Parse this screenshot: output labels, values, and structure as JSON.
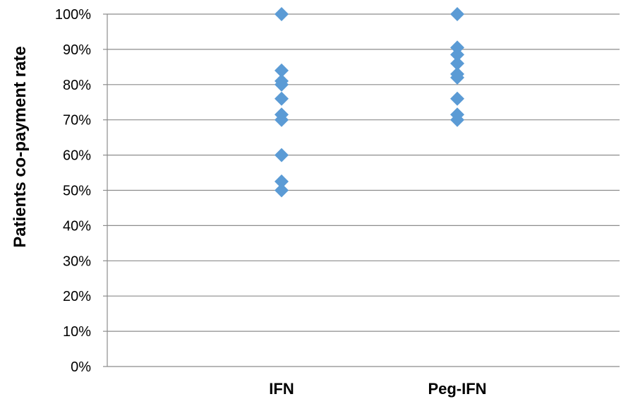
{
  "chart_data": {
    "type": "scatter",
    "title": "",
    "xlabel": "",
    "ylabel": "Patients co-payment rate",
    "categories": [
      "IFN",
      "Peg-IFN"
    ],
    "y_ticks": [
      "0%",
      "10%",
      "20%",
      "30%",
      "40%",
      "50%",
      "60%",
      "70%",
      "80%",
      "90%",
      "100%"
    ],
    "ylim": [
      0,
      100
    ],
    "y_unit": "%",
    "grid": true,
    "legend": "none",
    "marker": "diamond",
    "marker_color": "#5b9bd5",
    "series": [
      {
        "category": "IFN",
        "values": [
          100,
          84,
          81,
          80,
          76,
          71.5,
          70,
          60,
          52.5,
          50
        ]
      },
      {
        "category": "Peg-IFN",
        "values": [
          100,
          90.5,
          88.5,
          86,
          83,
          82,
          76,
          71.5,
          70
        ]
      }
    ]
  }
}
